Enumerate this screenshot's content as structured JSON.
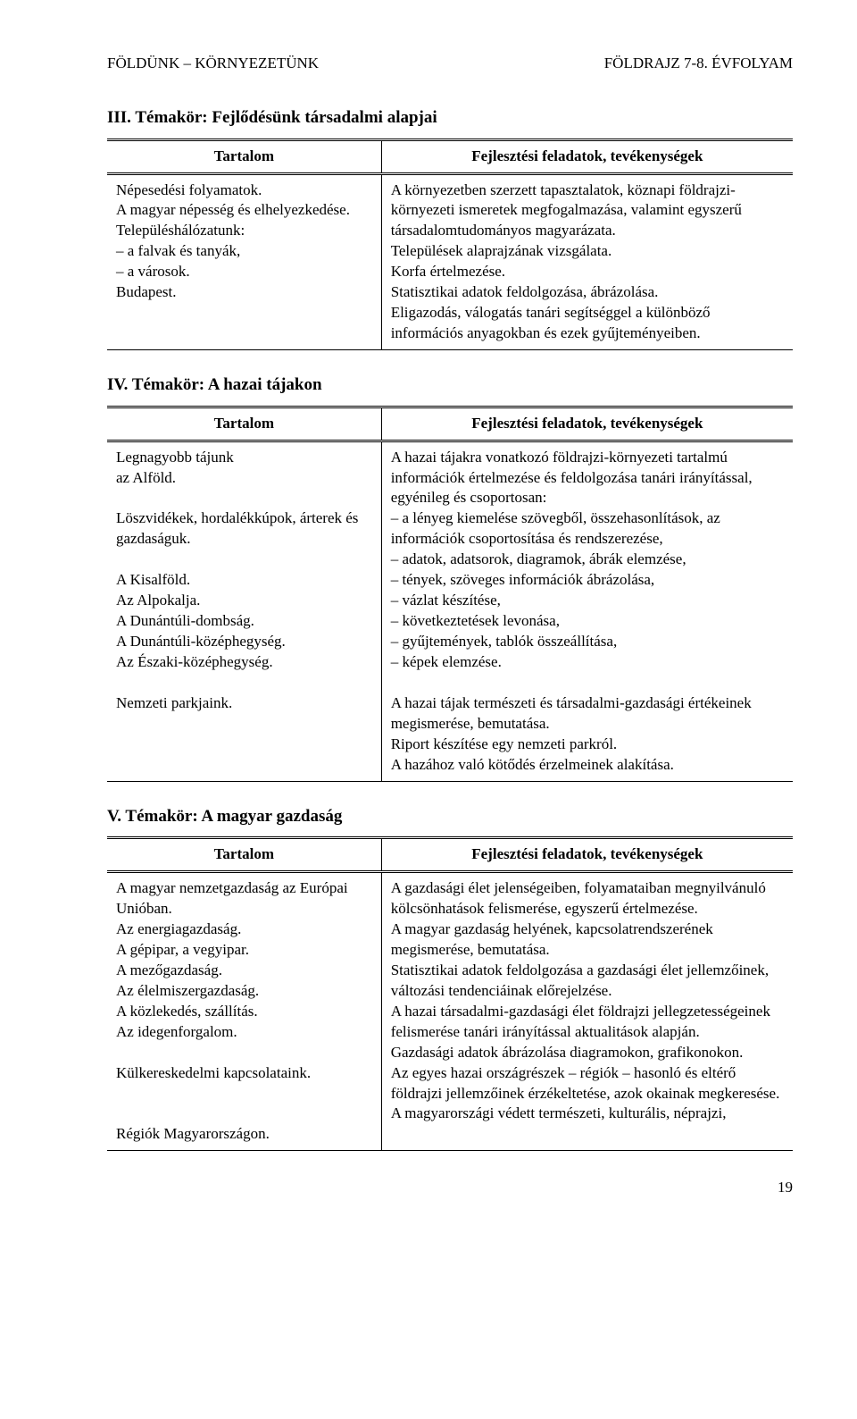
{
  "header": {
    "left": "FÖLDÜNK – KÖRNYEZETÜNK",
    "right": "FÖLDRAJZ 7-8. ÉVFOLYAM"
  },
  "section3": {
    "title": "III. Témakör: Fejlődésünk társadalmi alapjai",
    "col1": "Tartalom",
    "col2": "Fejlesztési feladatok, tevékenységek",
    "left": "Népesedési folyamatok.\nA magyar népesség és elhelyezkedése.\nTelepüléshálózatunk:\n– a falvak és tanyák,\n– a városok.\nBudapest.",
    "right": "A környezetben szerzett tapasztalatok, köznapi földrajzi-környezeti ismeretek megfogalmazása, valamint egyszerű társadalomtudományos magyarázata.\nTelepülések alaprajzának vizsgálata.\nKorfa értelmezése.\nStatisztikai adatok feldolgozása, ábrázolása.\nEligazodás, válogatás tanári segítséggel a különböző információs anyagokban és ezek gyűjteményeiben."
  },
  "section4": {
    "title": "IV. Témakör: A hazai tájakon",
    "col1": "Tartalom",
    "col2": "Fejlesztési feladatok, tevékenységek",
    "left": "Legnagyobb tájunk\naz Alföld.\n\nLöszvidékek, hordalékkúpok, árterek és\ngazdaságuk.\n\nA Kisalföld.\nAz Alpokalja.\nA Dunántúli-dombság.\nA Dunántúli-középhegység.\nAz Északi-középhegység.\n\nNemzeti parkjaink.",
    "right": "A hazai tájakra vonatkozó földrajzi-környezeti tartalmú információk értelmezése és feldolgozása tanári irányítással, egyénileg és csoportosan:\n– a lényeg kiemelése szövegből, összehasonlítások, az információk csoportosítása és rendszerezése,\n– adatok, adatsorok, diagramok, ábrák elemzése,\n– tények, szöveges információk ábrázolása,\n– vázlat készítése,\n– következtetések levonása,\n– gyűjtemények, tablók összeállítása,\n– képek elemzése.\n\nA hazai tájak természeti és társadalmi-gazdasági értékeinek megismerése, bemutatása.\nRiport készítése egy nemzeti parkról.\nA hazához való kötődés érzelmeinek alakítása."
  },
  "section5": {
    "title": "V. Témakör: A magyar gazdaság",
    "col1": "Tartalom",
    "col2": "Fejlesztési feladatok, tevékenységek",
    "left": "A magyar nemzetgazdaság az Európai Unióban.\nAz energiagazdaság.\nA gépipar, a vegyipar.\nA mezőgazdaság.\nAz élelmiszergazdaság.\nA közlekedés, szállítás.\nAz idegenforgalom.\n\nKülkereskedelmi kapcsolataink.\n\n\nRégiók Magyarországon.",
    "right": "A gazdasági élet jelenségeiben, folyamataiban megnyilvánuló kölcsönhatások felismerése, egyszerű értelmezése.\nA magyar gazdaság helyének, kapcsolatrendszerének megismerése, bemutatása.\nStatisztikai adatok feldolgozása a gazdasági élet jellemzőinek, változási tendenciáinak előrejelzése.\nA hazai társadalmi-gazdasági élet földrajzi jellegzetességeinek felismerése tanári irányítással aktualitások alapján.\nGazdasági adatok ábrázolása diagramokon, grafikonokon.\nAz egyes hazai országrészek – régiók – hasonló és eltérő földrajzi jellemzőinek érzékeltetése, azok okainak megkeresése.\nA magyarországi védett természeti, kulturális, néprajzi,"
  },
  "page": "19"
}
